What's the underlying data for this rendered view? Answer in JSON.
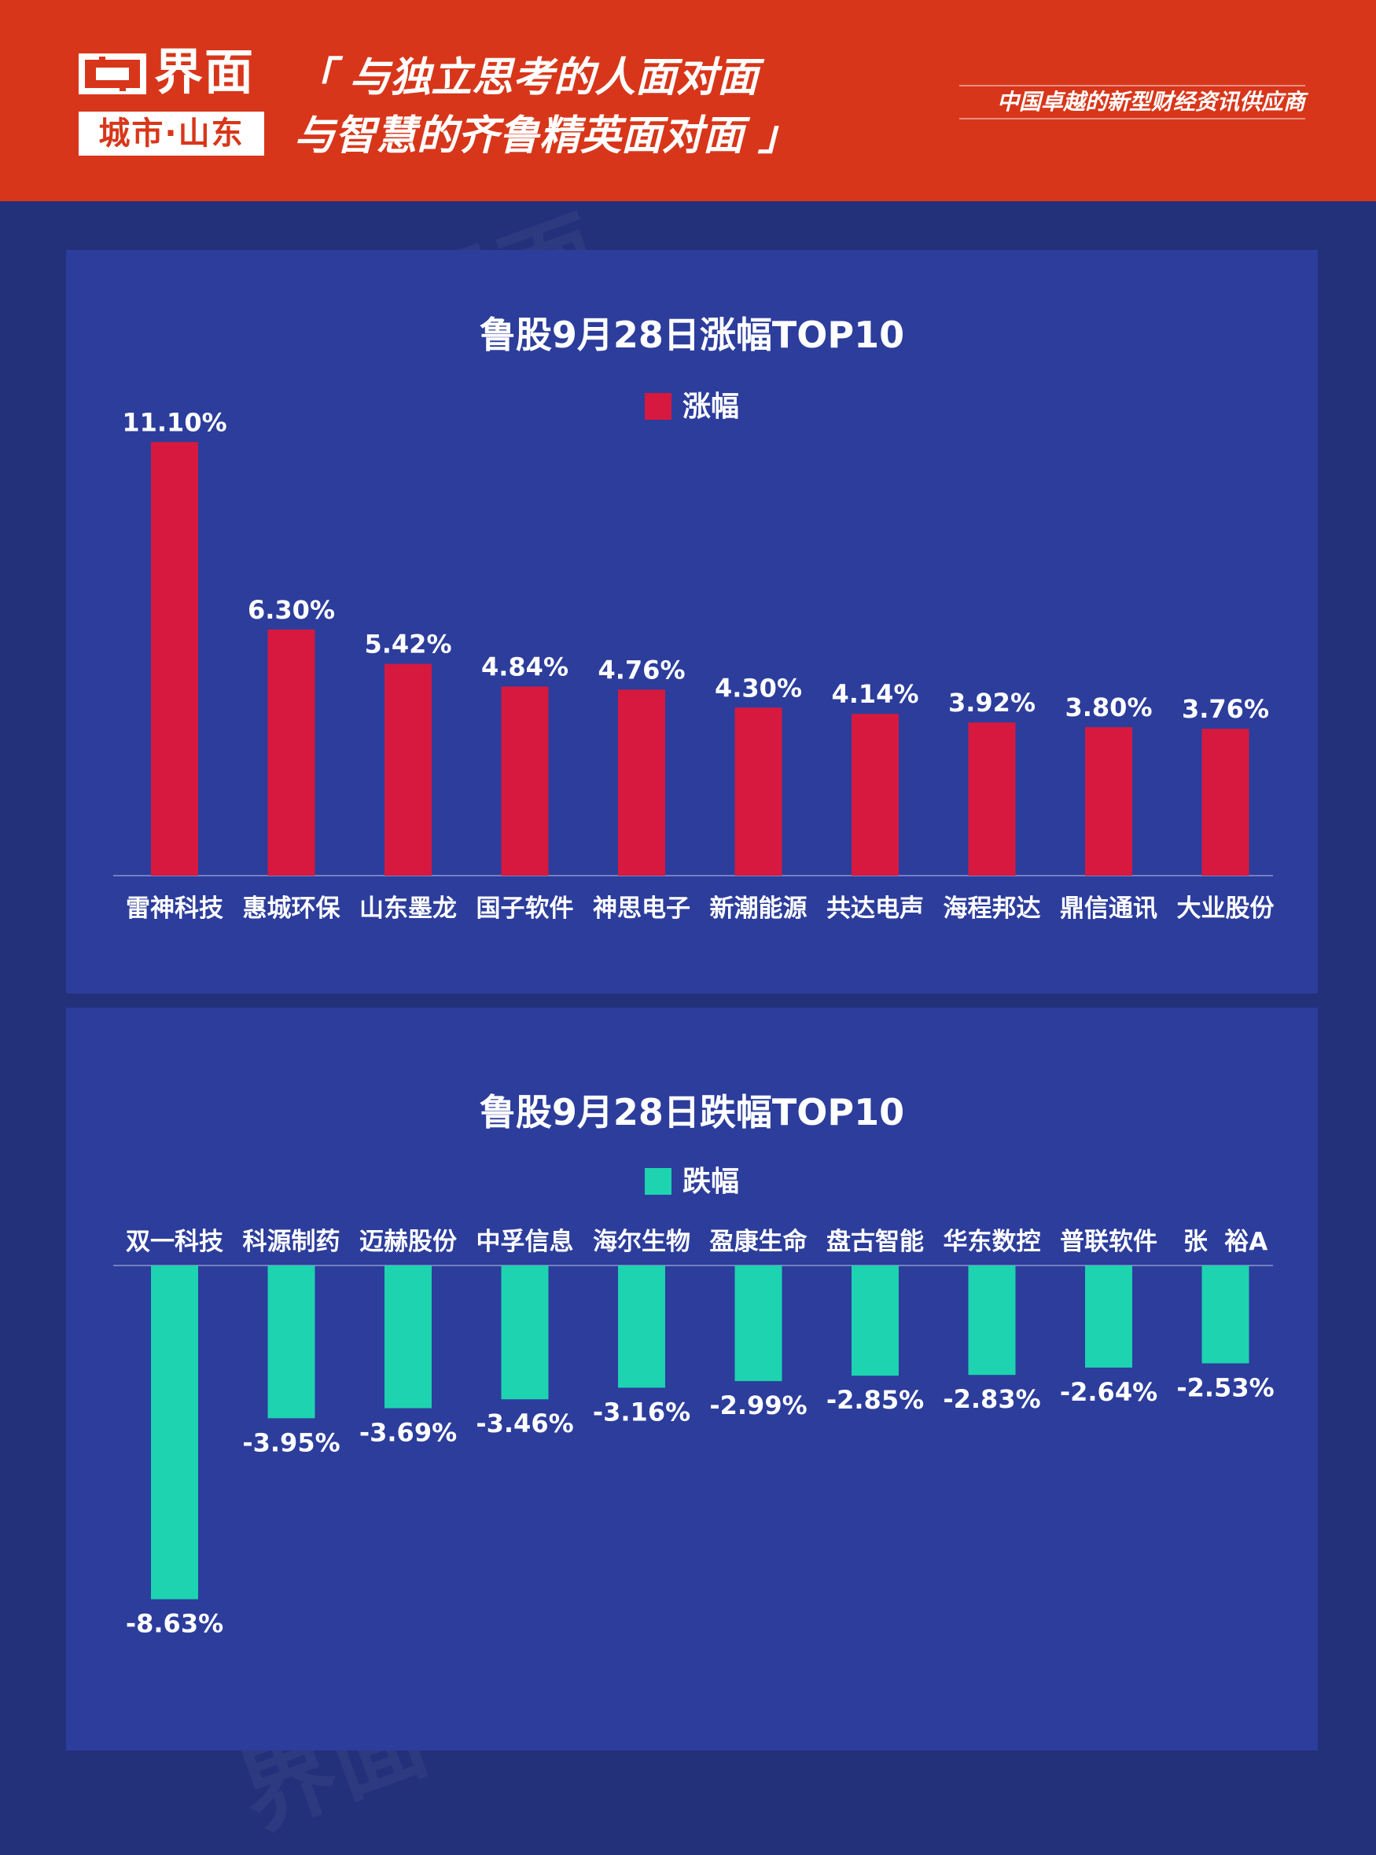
{
  "header": {
    "logo_name": "界面",
    "logo_city": "城市·山东",
    "slogan_line1": "「 与独立思考的人面对面",
    "slogan_line2": "与智慧的齐鲁精英面对面 」",
    "tagline": "中国卓越的新型财经资讯供应商",
    "colors": {
      "header_bg": "#d8361a",
      "page_bg": "#23307a",
      "panel_bg": "#2c3d9c"
    }
  },
  "chart_data": [
    {
      "type": "bar",
      "title": "鲁股9月28日涨幅TOP10",
      "series": [
        {
          "name": "涨幅",
          "color": "#d7193f"
        }
      ],
      "categories": [
        "雷神科技",
        "惠城环保",
        "山东墨龙",
        "国子软件",
        "神思电子",
        "新潮能源",
        "共达电声",
        "海程邦达",
        "鼎信通讯",
        "大业股份"
      ],
      "values": [
        11.1,
        6.3,
        5.42,
        4.84,
        4.76,
        4.3,
        4.14,
        3.92,
        3.8,
        3.76
      ],
      "labels": [
        "11.10%",
        "6.30%",
        "5.42%",
        "4.84%",
        "4.76%",
        "4.30%",
        "4.14%",
        "3.92%",
        "3.80%",
        "3.76%"
      ],
      "grid": false,
      "legend": "top-center"
    },
    {
      "type": "bar",
      "title": "鲁股9月28日跌幅TOP10",
      "series": [
        {
          "name": "跌幅",
          "color": "#1dd3b0"
        }
      ],
      "categories": [
        "双一科技",
        "科源制药",
        "迈赫股份",
        "中孚信息",
        "海尔生物",
        "盈康生命",
        "盘古智能",
        "华东数控",
        "普联软件",
        "张  裕A"
      ],
      "values": [
        -8.63,
        -3.95,
        -3.69,
        -3.46,
        -3.16,
        -2.99,
        -2.85,
        -2.83,
        -2.64,
        -2.53
      ],
      "labels": [
        "-8.63%",
        "-3.95%",
        "-3.69%",
        "-3.46%",
        "-3.16%",
        "-2.99%",
        "-2.85%",
        "-2.83%",
        "-2.64%",
        "-2.53%"
      ],
      "grid": false,
      "legend": "top-center"
    }
  ]
}
